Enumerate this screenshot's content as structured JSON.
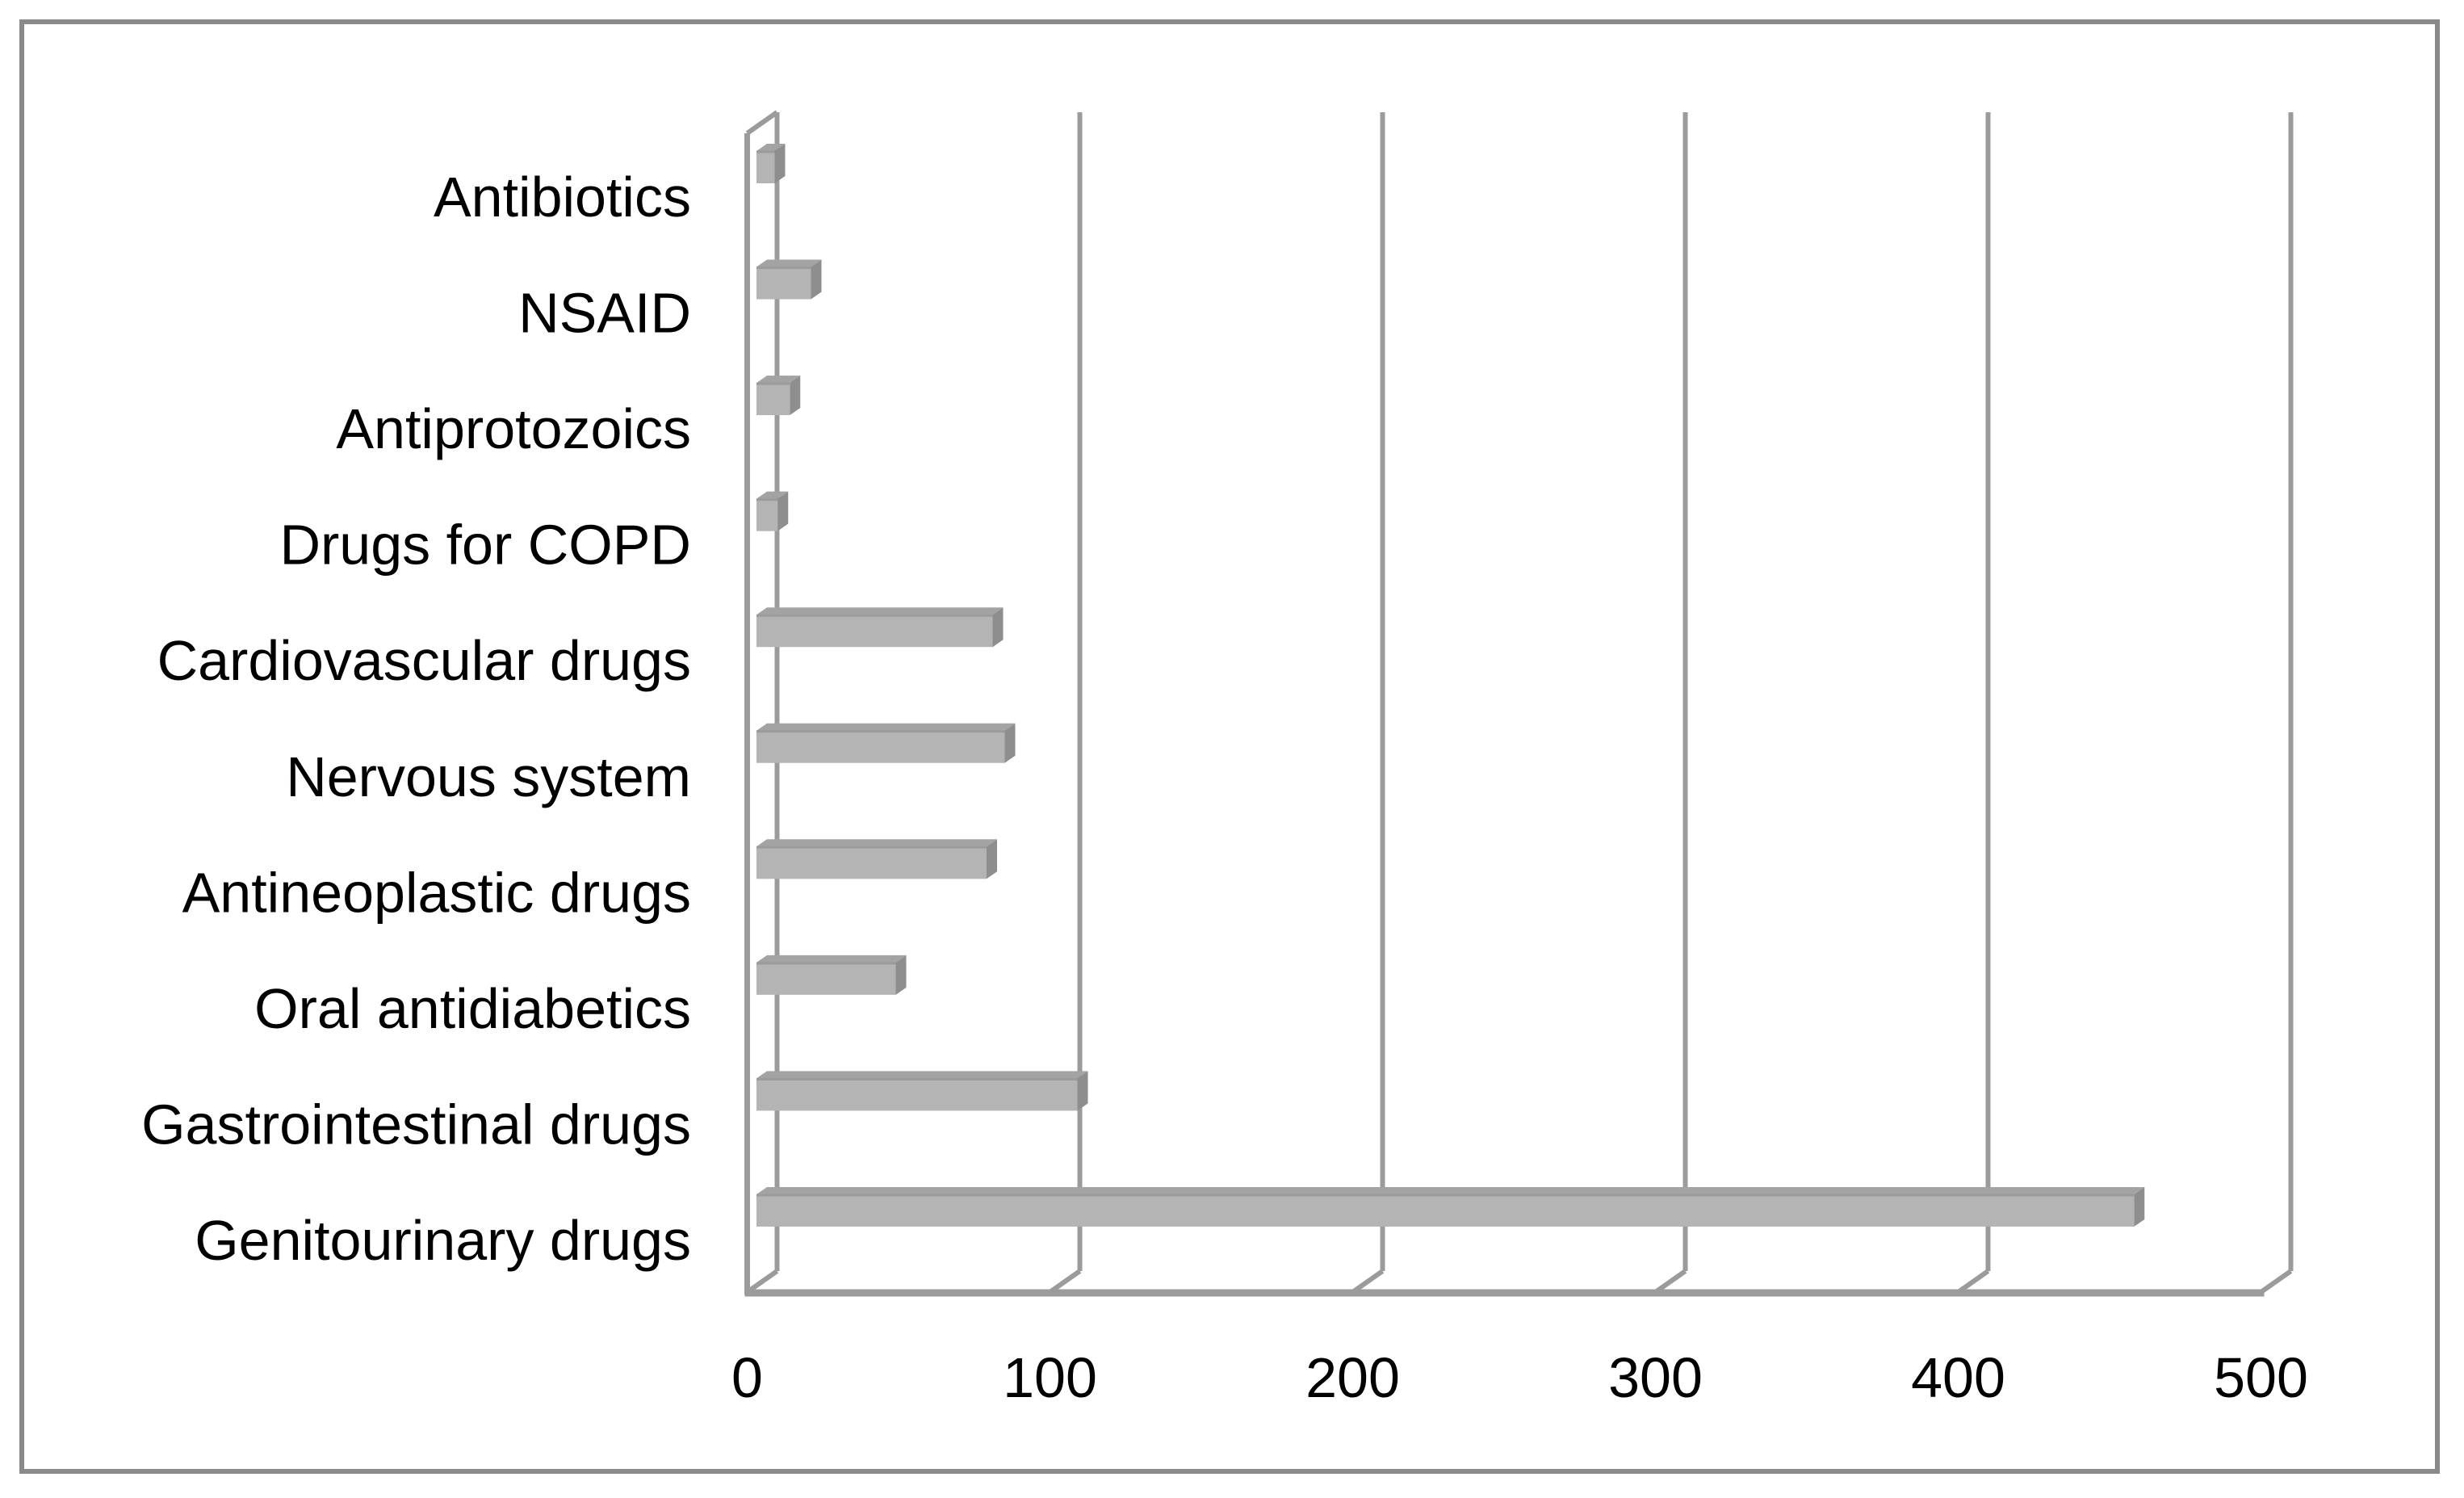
{
  "figure": {
    "background": "#ffffff",
    "border_color": "#8a8a8a"
  },
  "chart_data": {
    "type": "bar",
    "orientation": "horizontal",
    "style": "3d",
    "title": "",
    "xlabel": "",
    "ylabel": "",
    "categories": [
      "Antibiotics",
      "NSAID",
      "Antiprotozoics",
      "Drugs for COPD",
      "Cardiovascular drugs",
      "Nervous system",
      "Antineoplastic drugs",
      "Oral antidiabetics",
      "Gastrointestinal drugs",
      "Genitourinary drugs"
    ],
    "values": [
      6,
      18,
      11,
      7,
      78,
      82,
      76,
      46,
      106,
      455
    ],
    "x_ticks": [
      0,
      100,
      200,
      300,
      400,
      500
    ],
    "xlim": [
      0,
      500
    ],
    "grid": true,
    "legend": false,
    "colors": {
      "bar_front": "#b4b4b4",
      "bar_top": "#a3a3a3",
      "bar_side": "#8e8e8e",
      "bar_edge": "#8d8d8d",
      "axis_line": "#9b9b9b",
      "text": "#000000"
    }
  }
}
